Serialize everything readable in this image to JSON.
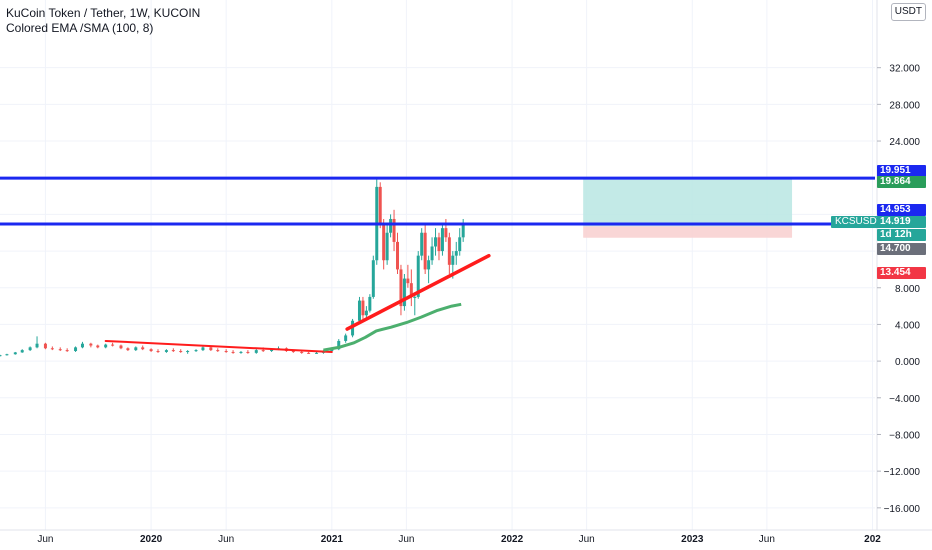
{
  "header": {
    "title": "KuCoin Token / Tether, 1W, KUCOIN",
    "indicator": "Colored EMA /SMA (100, 8)",
    "currency_label": "USDT"
  },
  "price_tags": {
    "upper_level": "19.951",
    "target": "19.864",
    "lower_level": "14.953",
    "symbol": "KCSUSDT",
    "last_price": "14.919",
    "countdown": "1d 12h",
    "entry": "14.700",
    "stop": "13.454"
  },
  "colors": {
    "hline": "#1b28f0",
    "trend_red": "#ff1c1c",
    "ma_green": "#4caf6e",
    "candle_up": "#26a69a",
    "candle_down": "#ef5350",
    "profit_zone": "#b8e6e3",
    "loss_zone": "#f8cfcf",
    "tag_blue": "#1b28f0",
    "tag_green": "#2a9d5a",
    "tag_teal": "#26a69a",
    "tag_gray": "#6b6f7a",
    "tag_red": "#f23645"
  },
  "chart_data": {
    "type": "candlestick",
    "title": "KuCoin Token / Tether, 1W, KUCOIN",
    "y_ticks": [
      32,
      28,
      24,
      20,
      16,
      12,
      8,
      4,
      0,
      -4,
      -8,
      -12,
      -16
    ],
    "y_tick_labels": [
      "32.000",
      "28.000",
      "24.000",
      "",
      "",
      "",
      "8.000",
      "4.000",
      "0.000",
      "−4.000",
      "−8.000",
      "−12.000",
      "−16.000"
    ],
    "x_tick_labels": [
      "Jun",
      "2020",
      "Jun",
      "2021",
      "Jun",
      "2022",
      "Jun",
      "2023",
      "Jun",
      "202"
    ],
    "x_tick_dates": [
      "2019-06-01",
      "2020-01-01",
      "2020-06-01",
      "2021-01-01",
      "2021-06-01",
      "2022-01-01",
      "2022-06-01",
      "2023-01-01",
      "2023-06-01",
      "2024-01-01"
    ],
    "ylim": [
      -17,
      36
    ],
    "xlim": [
      "2019-03-01",
      "2024-01-06"
    ],
    "horizontal_lines": [
      19.951,
      14.953
    ],
    "position": {
      "start": "2022-05-25",
      "end": "2023-07-22",
      "entry": 14.7,
      "target": 19.864,
      "stop": 13.454
    },
    "trendlines": [
      {
        "name": "",
        "color": "red",
        "points": [
          [
            "2019-10-01",
            2.2
          ],
          [
            "2021-01-01",
            1.0
          ]
        ]
      },
      {
        "name": "",
        "color": "red",
        "points": [
          [
            "2021-02-01",
            3.5
          ],
          [
            "2021-11-15",
            11.5
          ]
        ]
      }
    ],
    "ma_line": [
      [
        "2020-12-15",
        1.2
      ],
      [
        "2021-01-15",
        1.5
      ],
      [
        "2021-02-15",
        2.0
      ],
      [
        "2021-03-10",
        2.6
      ],
      [
        "2021-04-01",
        3.3
      ],
      [
        "2021-05-01",
        3.7
      ],
      [
        "2021-06-01",
        4.2
      ],
      [
        "2021-07-01",
        4.8
      ],
      [
        "2021-08-01",
        5.5
      ],
      [
        "2021-09-01",
        6.0
      ],
      [
        "2021-09-20",
        6.2
      ]
    ],
    "candles": [
      [
        "2019-03-01",
        0.6,
        0.7,
        0.5,
        0.65
      ],
      [
        "2019-03-15",
        0.65,
        0.8,
        0.6,
        0.75
      ],
      [
        "2019-04-01",
        0.75,
        1.0,
        0.7,
        0.95
      ],
      [
        "2019-04-15",
        0.95,
        1.3,
        0.9,
        1.2
      ],
      [
        "2019-05-01",
        1.2,
        1.6,
        1.1,
        1.5
      ],
      [
        "2019-05-15",
        1.5,
        2.7,
        1.4,
        1.9
      ],
      [
        "2019-06-01",
        1.9,
        2.0,
        1.3,
        1.4
      ],
      [
        "2019-06-15",
        1.4,
        1.6,
        1.2,
        1.3
      ],
      [
        "2019-07-01",
        1.3,
        1.5,
        1.1,
        1.2
      ],
      [
        "2019-07-15",
        1.2,
        1.4,
        1.0,
        1.1
      ],
      [
        "2019-08-01",
        1.1,
        1.6,
        1.0,
        1.5
      ],
      [
        "2019-08-15",
        1.5,
        2.1,
        1.4,
        1.9
      ],
      [
        "2019-09-01",
        1.9,
        2.0,
        1.5,
        1.7
      ],
      [
        "2019-09-15",
        1.7,
        1.8,
        1.4,
        1.5
      ],
      [
        "2019-10-01",
        1.5,
        1.9,
        1.4,
        1.8
      ],
      [
        "2019-10-15",
        1.8,
        2.0,
        1.6,
        1.7
      ],
      [
        "2019-11-01",
        1.7,
        1.8,
        1.3,
        1.4
      ],
      [
        "2019-11-15",
        1.4,
        1.5,
        1.1,
        1.2
      ],
      [
        "2019-12-01",
        1.2,
        1.6,
        1.1,
        1.5
      ],
      [
        "2019-12-15",
        1.5,
        1.7,
        1.2,
        1.3
      ],
      [
        "2020-01-01",
        1.3,
        1.4,
        1.0,
        1.1
      ],
      [
        "2020-01-15",
        1.1,
        1.3,
        0.9,
        1.0
      ],
      [
        "2020-02-01",
        1.0,
        1.3,
        0.9,
        1.2
      ],
      [
        "2020-02-15",
        1.2,
        1.4,
        1.0,
        1.1
      ],
      [
        "2020-03-01",
        1.1,
        1.3,
        0.9,
        1.0
      ],
      [
        "2020-03-15",
        1.0,
        1.2,
        0.8,
        1.1
      ],
      [
        "2020-04-01",
        1.1,
        1.3,
        1.0,
        1.2
      ],
      [
        "2020-04-15",
        1.2,
        1.7,
        1.1,
        1.5
      ],
      [
        "2020-05-01",
        1.5,
        1.6,
        1.1,
        1.2
      ],
      [
        "2020-05-15",
        1.2,
        1.4,
        1.0,
        1.1
      ],
      [
        "2020-06-01",
        1.1,
        1.3,
        0.9,
        1.0
      ],
      [
        "2020-06-15",
        1.0,
        1.2,
        0.8,
        0.9
      ],
      [
        "2020-07-01",
        0.9,
        1.1,
        0.8,
        1.0
      ],
      [
        "2020-07-15",
        1.0,
        1.2,
        0.8,
        0.9
      ],
      [
        "2020-08-01",
        0.9,
        1.4,
        0.8,
        1.2
      ],
      [
        "2020-08-15",
        1.2,
        1.5,
        1.0,
        1.1
      ],
      [
        "2020-09-01",
        1.1,
        1.4,
        1.0,
        1.3
      ],
      [
        "2020-09-15",
        1.3,
        1.6,
        1.2,
        1.4
      ],
      [
        "2020-10-01",
        1.4,
        1.5,
        1.0,
        1.1
      ],
      [
        "2020-10-15",
        1.1,
        1.2,
        0.9,
        1.0
      ],
      [
        "2020-11-01",
        1.0,
        1.1,
        0.8,
        0.9
      ],
      [
        "2020-11-15",
        0.9,
        1.0,
        0.8,
        0.85
      ],
      [
        "2020-12-01",
        0.85,
        1.0,
        0.8,
        0.9
      ],
      [
        "2020-12-15",
        0.9,
        1.2,
        0.8,
        1.1
      ],
      [
        "2021-01-01",
        1.1,
        1.4,
        1.0,
        1.3
      ],
      [
        "2021-01-15",
        1.3,
        2.4,
        1.2,
        2.2
      ],
      [
        "2021-01-29",
        2.2,
        3.0,
        2.0,
        2.8
      ],
      [
        "2021-02-12",
        2.8,
        4.6,
        2.6,
        4.4
      ],
      [
        "2021-02-26",
        4.4,
        7.0,
        4.2,
        6.6
      ],
      [
        "2021-03-05",
        6.6,
        7.0,
        4.6,
        5.0
      ],
      [
        "2021-03-12",
        5.0,
        6.0,
        4.5,
        5.5
      ],
      [
        "2021-03-19",
        5.5,
        7.3,
        5.3,
        7.0
      ],
      [
        "2021-03-26",
        7.0,
        11.5,
        6.8,
        11.0
      ],
      [
        "2021-04-02",
        11.0,
        20.0,
        10.5,
        19.0
      ],
      [
        "2021-04-09",
        19.0,
        19.5,
        14.5,
        15.0
      ],
      [
        "2021-04-16",
        15.0,
        15.5,
        10.0,
        11.0
      ],
      [
        "2021-04-23",
        11.0,
        15.0,
        10.5,
        14.0
      ],
      [
        "2021-04-30",
        14.0,
        16.0,
        13.5,
        15.5
      ],
      [
        "2021-05-07",
        15.5,
        16.5,
        12.0,
        13.0
      ],
      [
        "2021-05-14",
        13.0,
        14.0,
        9.5,
        10.0
      ],
      [
        "2021-05-21",
        10.0,
        10.5,
        5.0,
        6.0
      ],
      [
        "2021-05-28",
        6.0,
        9.5,
        5.5,
        9.0
      ],
      [
        "2021-06-04",
        9.0,
        10.5,
        8.0,
        8.5
      ],
      [
        "2021-06-11",
        8.5,
        10.0,
        6.0,
        7.0
      ],
      [
        "2021-06-18",
        7.0,
        7.5,
        5.0,
        7.0
      ],
      [
        "2021-06-25",
        7.0,
        12.0,
        6.8,
        11.5
      ],
      [
        "2021-07-02",
        11.5,
        14.5,
        11.0,
        14.0
      ],
      [
        "2021-07-09",
        14.0,
        15.0,
        9.5,
        10.0
      ],
      [
        "2021-07-16",
        10.0,
        11.5,
        8.5,
        11.0
      ],
      [
        "2021-07-23",
        11.0,
        13.5,
        10.5,
        12.5
      ],
      [
        "2021-07-30",
        12.5,
        14.5,
        11.5,
        13.5
      ],
      [
        "2021-08-06",
        13.5,
        14.0,
        11.0,
        12.0
      ],
      [
        "2021-08-13",
        12.0,
        15.0,
        11.5,
        14.5
      ],
      [
        "2021-08-20",
        14.5,
        15.5,
        13.0,
        13.5
      ],
      [
        "2021-08-27",
        13.5,
        14.0,
        9.5,
        10.5
      ],
      [
        "2021-09-03",
        10.5,
        12.0,
        9.0,
        11.5
      ],
      [
        "2021-09-10",
        11.5,
        13.0,
        10.5,
        12.0
      ],
      [
        "2021-09-17",
        12.0,
        14.5,
        11.5,
        13.5
      ],
      [
        "2021-09-24",
        13.5,
        15.5,
        13.0,
        14.9
      ]
    ]
  }
}
